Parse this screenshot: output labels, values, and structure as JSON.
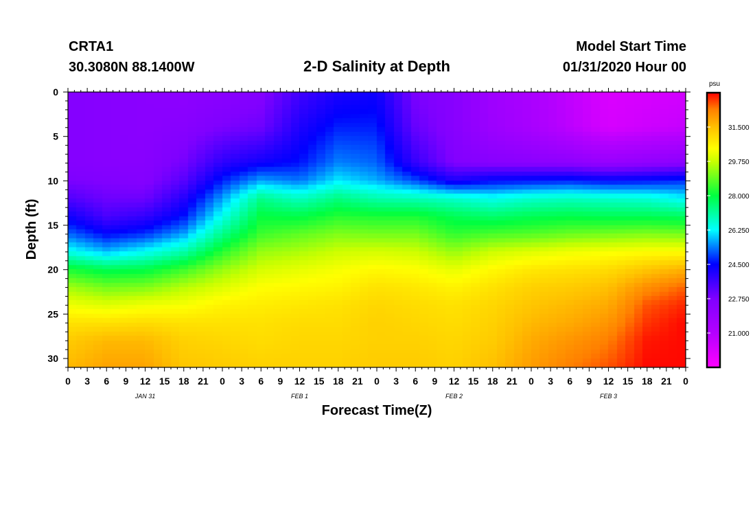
{
  "header": {
    "station_id": "CRTA1",
    "coordinates": "30.3080N 88.1400W",
    "title": "2-D Salinity at Depth",
    "model_start_label": "Model Start Time",
    "model_start_value": "01/31/2020 Hour 00"
  },
  "chart_data": {
    "type": "heatmap",
    "title": "2-D Salinity at Depth",
    "xlabel": "Forecast Time(Z)",
    "ylabel": "Depth (ft)",
    "x_range_hours": [
      0,
      96
    ],
    "y_range_ft": [
      0,
      31
    ],
    "y_inverted": true,
    "x_tick_step_hours": 3,
    "x_tick_labels": [
      "0",
      "3",
      "6",
      "9",
      "12",
      "15",
      "18",
      "21",
      "0",
      "3",
      "6",
      "9",
      "12",
      "15",
      "18",
      "21",
      "0",
      "3",
      "6",
      "9",
      "12",
      "15",
      "18",
      "21",
      "0",
      "3",
      "6",
      "9",
      "12",
      "15",
      "18",
      "21",
      "0"
    ],
    "y_ticks": [
      0,
      5,
      10,
      15,
      20,
      25,
      30
    ],
    "y_tick_labels": [
      "0",
      "5",
      "10",
      "15",
      "20",
      "25",
      "30"
    ],
    "date_labels": [
      {
        "text": "JAN 31",
        "hour": 12
      },
      {
        "text": "FEB 1",
        "hour": 36
      },
      {
        "text": "FEB 2",
        "hour": 60
      },
      {
        "text": "FEB 3",
        "hour": 84
      }
    ],
    "colorbar": {
      "unit": "psu",
      "min": 19.25,
      "max": 33.25,
      "ticks": [
        21.0,
        22.75,
        24.5,
        26.25,
        28.0,
        29.75,
        31.5
      ],
      "tick_labels": [
        "21.000",
        "22.750",
        "24.500",
        "26.250",
        "28.000",
        "29.750",
        "31.500"
      ],
      "stops": [
        {
          "value": 19.25,
          "color": "#ff00ff"
        },
        {
          "value": 21.0,
          "color": "#b400ff"
        },
        {
          "value": 22.75,
          "color": "#8000ff"
        },
        {
          "value": 24.5,
          "color": "#0000ff"
        },
        {
          "value": 25.4,
          "color": "#0080ff"
        },
        {
          "value": 26.25,
          "color": "#00ffff"
        },
        {
          "value": 28.0,
          "color": "#00ff40"
        },
        {
          "value": 29.75,
          "color": "#c8ff00"
        },
        {
          "value": 30.4,
          "color": "#ffff00"
        },
        {
          "value": 31.5,
          "color": "#ffc000"
        },
        {
          "value": 32.4,
          "color": "#ff8000"
        },
        {
          "value": 33.25,
          "color": "#ff0000"
        }
      ]
    },
    "profiles": {
      "depths_ft": [
        0,
        4,
        8,
        10,
        12,
        14,
        16,
        18,
        20,
        22,
        24,
        26,
        28,
        31
      ],
      "columns": [
        {
          "hour": 0,
          "values": [
            22.6,
            22.6,
            22.6,
            22.8,
            23.4,
            24.3,
            25.2,
            26.4,
            28.2,
            29.4,
            30.2,
            30.9,
            31.3,
            31.6
          ]
        },
        {
          "hour": 6,
          "values": [
            22.5,
            22.5,
            22.5,
            22.7,
            23.0,
            23.5,
            24.5,
            25.8,
            27.8,
            29.0,
            30.0,
            30.9,
            31.6,
            31.9
          ]
        },
        {
          "hour": 12,
          "values": [
            22.4,
            22.4,
            22.5,
            22.6,
            23.0,
            23.8,
            24.8,
            26.3,
            27.9,
            29.1,
            30.2,
            31.0,
            31.6,
            31.9
          ]
        },
        {
          "hour": 18,
          "values": [
            22.3,
            22.5,
            22.9,
            23.3,
            24.0,
            24.6,
            25.6,
            27.0,
            28.5,
            29.6,
            30.3,
            30.9,
            31.2,
            31.4
          ]
        },
        {
          "hour": 24,
          "values": [
            22.4,
            22.8,
            23.9,
            24.7,
            25.6,
            26.4,
            27.3,
            28.3,
            29.3,
            30.0,
            30.6,
            30.9,
            31.1,
            31.3
          ]
        },
        {
          "hour": 30,
          "values": [
            22.6,
            23.0,
            24.3,
            25.6,
            27.3,
            28.0,
            28.5,
            29.3,
            29.9,
            30.4,
            30.7,
            30.9,
            31.0,
            31.2
          ]
        },
        {
          "hour": 36,
          "values": [
            23.6,
            24.1,
            24.6,
            25.3,
            26.8,
            27.9,
            28.8,
            29.5,
            30.1,
            30.5,
            30.8,
            31.0,
            31.1,
            31.2
          ]
        },
        {
          "hour": 42,
          "values": [
            24.1,
            24.7,
            25.4,
            26.1,
            27.4,
            28.3,
            29.1,
            29.8,
            30.3,
            30.6,
            30.9,
            31.0,
            31.1,
            31.2
          ]
        },
        {
          "hour": 48,
          "values": [
            24.3,
            24.7,
            25.2,
            25.7,
            27.0,
            28.2,
            29.0,
            29.9,
            30.5,
            30.9,
            31.1,
            31.2,
            31.2,
            31.3
          ]
        },
        {
          "hour": 54,
          "values": [
            22.8,
            23.1,
            23.8,
            25.0,
            26.9,
            28.2,
            29.0,
            29.8,
            30.4,
            30.8,
            31.0,
            31.1,
            31.2,
            31.3
          ]
        },
        {
          "hour": 60,
          "values": [
            22.5,
            22.5,
            22.7,
            24.1,
            26.7,
            27.8,
            28.4,
            29.3,
            30.1,
            30.6,
            30.9,
            31.0,
            31.1,
            31.2
          ]
        },
        {
          "hour": 66,
          "values": [
            21.7,
            21.8,
            22.5,
            24.5,
            26.4,
            27.6,
            28.6,
            29.8,
            30.5,
            30.9,
            31.1,
            31.2,
            31.3,
            31.5
          ]
        },
        {
          "hour": 72,
          "values": [
            21.3,
            21.4,
            22.4,
            24.6,
            26.7,
            27.8,
            28.7,
            30.0,
            30.8,
            31.2,
            31.4,
            31.6,
            31.8,
            32.0
          ]
        },
        {
          "hour": 78,
          "values": [
            20.7,
            20.8,
            22.3,
            24.7,
            26.8,
            27.9,
            28.9,
            30.2,
            30.9,
            31.3,
            31.6,
            31.8,
            32.1,
            32.4
          ]
        },
        {
          "hour": 84,
          "values": [
            20.1,
            20.2,
            22.0,
            24.5,
            26.7,
            27.8,
            29.0,
            30.3,
            31.0,
            31.5,
            31.8,
            32.1,
            32.4,
            32.7
          ]
        },
        {
          "hour": 90,
          "values": [
            20.2,
            20.4,
            22.2,
            24.6,
            26.6,
            27.8,
            29.1,
            30.4,
            31.4,
            32.2,
            32.7,
            32.9,
            33.1,
            33.2
          ]
        },
        {
          "hour": 96,
          "values": [
            20.3,
            20.6,
            22.4,
            24.8,
            26.2,
            27.7,
            29.0,
            30.4,
            31.7,
            32.6,
            33.0,
            33.2,
            33.2,
            33.2
          ]
        }
      ]
    }
  }
}
